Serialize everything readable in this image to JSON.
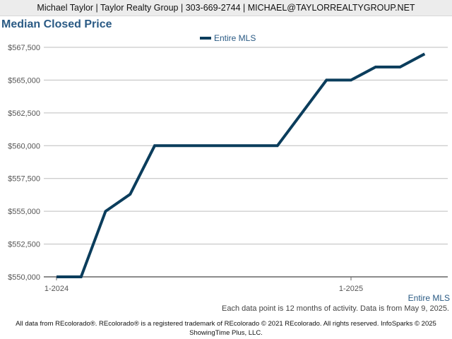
{
  "header": {
    "agent_line": "Michael Taylor | Taylor Realty Group | 303-669-2744 | MICHAEL@TAYLORREALTYGROUP.NET"
  },
  "chart_data": {
    "type": "line",
    "title": "Median Closed Price",
    "xlabel": "",
    "ylabel": "",
    "legend_position": "top-center",
    "grid": true,
    "ylim": [
      550000,
      567500
    ],
    "y_ticks": [
      550000,
      552500,
      555000,
      557500,
      560000,
      562500,
      565000,
      567500
    ],
    "y_tick_labels": [
      "$550,000",
      "$552,500",
      "$555,000",
      "$557,500",
      "$560,000",
      "$562,500",
      "$565,000",
      "$567,500"
    ],
    "x_tick_labels": [
      {
        "label": "1-2024",
        "index": 0
      },
      {
        "label": "1-2025",
        "index": 12
      }
    ],
    "x": [
      "1-2024",
      "2-2024",
      "3-2024",
      "4-2024",
      "5-2024",
      "6-2024",
      "7-2024",
      "8-2024",
      "9-2024",
      "10-2024",
      "11-2024",
      "12-2024",
      "1-2025",
      "2-2025",
      "3-2025",
      "4-2025"
    ],
    "series": [
      {
        "name": "Entire MLS",
        "color": "#0b3d5c",
        "values": [
          550000,
          550000,
          555000,
          556300,
          560000,
          560000,
          560000,
          560000,
          560000,
          560000,
          562500,
          565000,
          565000,
          566000,
          566000,
          567000
        ]
      }
    ],
    "series_end_label": "Entire MLS"
  },
  "footnote": "Each data point is 12 months of activity. Data is from May 9, 2025.",
  "credit": {
    "line1": "All data from REcolorado®. REcolorado® is a registered trademark of REcolorado © 2021 REcolorado. All rights reserved. InfoSparks © 2025",
    "line2": "ShowingTime Plus, LLC."
  }
}
